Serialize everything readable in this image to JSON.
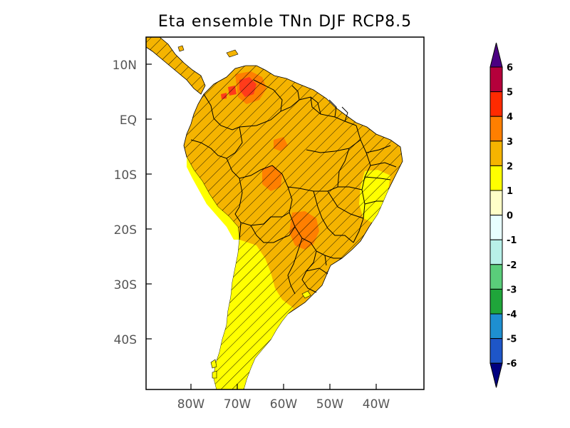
{
  "title": "Eta ensemble TNn DJF RCP8.5",
  "map": {
    "lat_labels": [
      "10N",
      "EQ",
      "10S",
      "20S",
      "30S",
      "40S"
    ],
    "lon_labels": [
      "80W",
      "70W",
      "60W",
      "50W",
      "40W"
    ],
    "significance_hatching": true,
    "colors": {
      "ocean": "#ffffff",
      "dominant_land": "#f5b400",
      "southern_cone": "#ffff00",
      "hotspot": "#ff7f00",
      "max_hotspot": "#ff3b1a",
      "border": "#000000"
    }
  },
  "colorbar": {
    "labels": [
      "6",
      "5",
      "4",
      "3",
      "2",
      "1",
      "0",
      "-1",
      "-2",
      "-3",
      "-4",
      "-5",
      "-6"
    ],
    "bins": [
      {
        "color": "#4b0082"
      },
      {
        "color": "#b5003b"
      },
      {
        "color": "#ff2a00"
      },
      {
        "color": "#ff7f00"
      },
      {
        "color": "#f5b400"
      },
      {
        "color": "#ffff00"
      },
      {
        "color": "#ffffc8"
      },
      {
        "color": "#e8ffff"
      },
      {
        "color": "#b8f0e8"
      },
      {
        "color": "#5acd7a"
      },
      {
        "color": "#1fa53a"
      },
      {
        "color": "#1e8fd0"
      },
      {
        "color": "#1e56c8"
      },
      {
        "color": "#000080"
      }
    ]
  }
}
